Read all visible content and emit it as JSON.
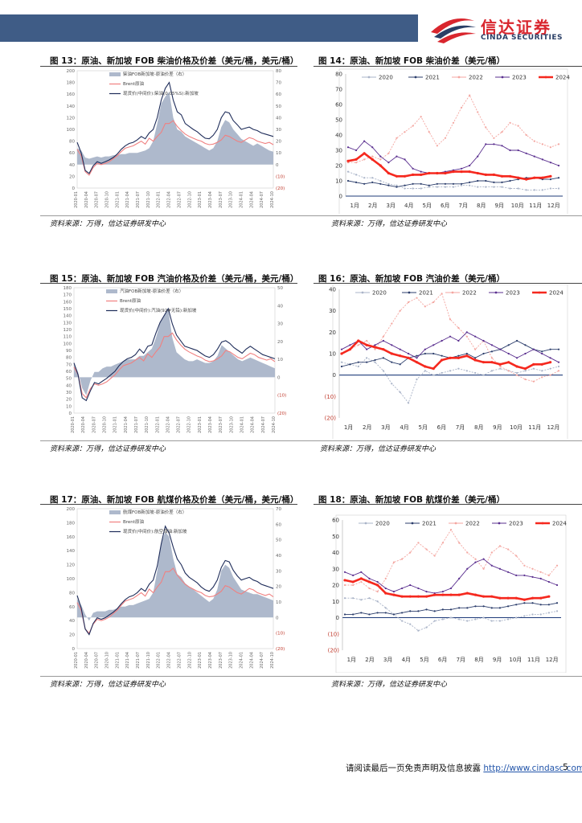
{
  "header": {
    "brand_cn": "信达证券",
    "brand_en": "CINDA SECURITIES",
    "colors": {
      "bar": "#3f5c86",
      "brand_red": "#d9262e",
      "brand_navy": "#2a3f66"
    }
  },
  "source_note": "资料来源：万得，信达证券研发中心",
  "footer": {
    "disclaimer": "请阅读最后一页免责声明及信息披露",
    "url": "http://www.cindasc.com",
    "page": "5"
  },
  "chart_data": [
    {
      "id": "fig13",
      "type": "area+line",
      "title": "图 13：原油、新加坡 FOB 柴油价格及价差（美元/桶，美元/桶）",
      "series": [
        {
          "name": "柴油FOB新加坡-原油价差（右）",
          "kind": "area",
          "color": "#aeb9cc"
        },
        {
          "name": "Brent原油",
          "kind": "line",
          "color": "#f08080"
        },
        {
          "name": "现货价(中间价):柴油(0.05%S):新加坡",
          "kind": "line",
          "color": "#1f2d5a"
        }
      ],
      "left_axis": {
        "ticks": [
          "0",
          "20",
          "40",
          "60",
          "80",
          "100",
          "120",
          "140",
          "160",
          "180",
          "200"
        ],
        "ylim": [
          0,
          200
        ]
      },
      "right_axis": {
        "ticks": [
          "(20)",
          "(10)",
          "0",
          "10",
          "20",
          "30",
          "40",
          "50",
          "60",
          "70",
          "80"
        ],
        "ylim": [
          -20,
          80
        ]
      },
      "x_ticks": [
        "2020-01",
        "2020-04",
        "2020-07",
        "2020-10",
        "2021-01",
        "2021-04",
        "2021-07",
        "2021-10",
        "2022-01",
        "2022-04",
        "2022-07",
        "2022-10",
        "2023-01",
        "2023-04",
        "2023-07",
        "2023-10",
        "2024-01",
        "2024-04",
        "2024-07",
        "2024-10"
      ],
      "brent": [
        66,
        55,
        28,
        22,
        35,
        42,
        40,
        42,
        45,
        50,
        55,
        62,
        68,
        70,
        72,
        76,
        80,
        75,
        85,
        80,
        88,
        95,
        110,
        110,
        115,
        105,
        98,
        92,
        88,
        85,
        82,
        80,
        76,
        74,
        75,
        78,
        82,
        90,
        88,
        84,
        80,
        78,
        82,
        86,
        84,
        80,
        78,
        76,
        78,
        74
      ],
      "diesel": [
        78,
        60,
        30,
        25,
        38,
        45,
        42,
        45,
        48,
        52,
        58,
        66,
        72,
        76,
        78,
        82,
        88,
        84,
        94,
        100,
        120,
        150,
        170,
        180,
        150,
        130,
        125,
        110,
        105,
        100,
        96,
        90,
        85,
        84,
        90,
        100,
        120,
        130,
        128,
        115,
        108,
        100,
        102,
        104,
        100,
        98,
        94,
        92,
        90,
        88
      ],
      "spread": [
        14,
        12,
        6,
        5,
        6,
        7,
        6,
        7,
        7,
        8,
        8,
        9,
        9,
        10,
        10,
        10,
        11,
        12,
        14,
        20,
        35,
        52,
        58,
        62,
        40,
        30,
        28,
        24,
        22,
        20,
        18,
        16,
        14,
        12,
        14,
        20,
        32,
        38,
        36,
        30,
        26,
        22,
        20,
        18,
        16,
        18,
        16,
        14,
        12,
        11
      ]
    },
    {
      "id": "fig14",
      "type": "line",
      "title": "图 14：原油、新加坡 FOB 柴油价差（美元/桶）",
      "legend": [
        "2020",
        "2021",
        "2022",
        "2023",
        "2024"
      ],
      "colors": {
        "2020": "#aab4c8",
        "2021": "#2b3d6b",
        "2022": "#f4a6a0",
        "2023": "#5a2f8f",
        "2024": "#f5281e"
      },
      "y_ticks": [
        "0",
        "10",
        "20",
        "30",
        "40",
        "50",
        "60",
        "70",
        "80"
      ],
      "ylim": [
        0,
        80
      ],
      "x_ticks": [
        "1月",
        "2月",
        "3月",
        "4月",
        "5月",
        "6月",
        "7月",
        "8月",
        "9月",
        "10月",
        "11月",
        "12月"
      ],
      "series": {
        "2020": [
          16,
          14,
          12,
          12,
          10,
          8,
          7,
          5,
          5,
          5,
          6,
          6,
          6,
          6,
          7,
          7,
          6,
          6,
          6,
          6,
          5,
          5,
          4,
          4,
          4,
          5,
          5
        ],
        "2021": [
          10,
          9,
          8,
          9,
          8,
          7,
          6,
          7,
          8,
          8,
          7,
          8,
          8,
          8,
          8,
          9,
          10,
          10,
          9,
          9,
          10,
          11,
          12,
          12,
          11,
          11,
          12
        ],
        "2022": [
          22,
          22,
          24,
          26,
          24,
          28,
          38,
          42,
          46,
          52,
          42,
          33,
          38,
          48,
          58,
          66,
          55,
          45,
          38,
          42,
          48,
          46,
          40,
          36,
          34,
          32,
          34
        ],
        "2023": [
          32,
          30,
          36,
          32,
          26,
          22,
          26,
          24,
          18,
          16,
          15,
          15,
          16,
          17,
          18,
          20,
          26,
          34,
          34,
          33,
          30,
          30,
          28,
          26,
          24,
          22,
          20
        ],
        "2024": [
          23,
          24,
          28,
          24,
          20,
          15,
          13,
          13,
          14,
          14,
          15,
          15,
          15,
          16,
          16,
          16,
          15,
          14,
          14,
          13,
          13,
          12,
          11,
          12,
          12,
          13,
          null
        ]
      }
    },
    {
      "id": "fig15",
      "type": "area+line",
      "title": "图 15：原油、新加坡 FOB 汽油价格及价差（美元/桶，美元/桶）",
      "series": [
        {
          "name": "汽油FOB新加坡-原油价差（右）",
          "kind": "area",
          "color": "#aeb9cc"
        },
        {
          "name": "Brent原油",
          "kind": "line",
          "color": "#f08080"
        },
        {
          "name": "现货价(中间价):汽油(92#无铅):新加坡",
          "kind": "line",
          "color": "#1f2d5a"
        }
      ],
      "left_axis": {
        "ticks": [
          "0",
          "10",
          "20",
          "30",
          "40",
          "50",
          "60",
          "70",
          "80",
          "90",
          "100",
          "110",
          "120",
          "130",
          "140",
          "150",
          "160",
          "170",
          "180"
        ],
        "ylim": [
          0,
          180
        ]
      },
      "right_axis": {
        "ticks": [
          "(20)",
          "(10)",
          "0",
          "10",
          "20",
          "30",
          "40",
          "50"
        ],
        "ylim": [
          -20,
          50
        ]
      },
      "x_ticks": [
        "2020-01",
        "2020-04",
        "2020-07",
        "2020-10",
        "2021-01",
        "2021-04",
        "2021-07",
        "2021-10",
        "2022-01",
        "2022-04",
        "2022-07",
        "2022-10",
        "2023-01",
        "2023-04",
        "2023-07",
        "2023-10",
        "2024-01",
        "2024-04",
        "2024-07",
        "2024-10"
      ],
      "brent": [
        66,
        55,
        28,
        22,
        35,
        42,
        40,
        42,
        45,
        50,
        55,
        62,
        68,
        70,
        72,
        76,
        80,
        75,
        85,
        80,
        88,
        95,
        110,
        110,
        115,
        105,
        98,
        92,
        88,
        85,
        82,
        80,
        76,
        74,
        75,
        78,
        82,
        90,
        88,
        84,
        80,
        78,
        82,
        86,
        84,
        80,
        78,
        76,
        78,
        74
      ],
      "gasoline": [
        72,
        55,
        22,
        18,
        32,
        44,
        42,
        46,
        50,
        55,
        60,
        68,
        74,
        78,
        80,
        84,
        92,
        86,
        96,
        98,
        115,
        130,
        140,
        150,
        128,
        112,
        104,
        96,
        94,
        92,
        90,
        86,
        82,
        80,
        84,
        92,
        102,
        104,
        100,
        94,
        90,
        86,
        92,
        96,
        92,
        88,
        84,
        82,
        80,
        78
      ],
      "spread": [
        8,
        3,
        -6,
        -10,
        -2,
        3,
        3,
        5,
        6,
        6,
        7,
        8,
        9,
        10,
        10,
        10,
        12,
        12,
        14,
        16,
        22,
        30,
        34,
        38,
        22,
        14,
        12,
        10,
        9,
        9,
        10,
        9,
        8,
        8,
        9,
        12,
        18,
        16,
        14,
        12,
        10,
        9,
        10,
        11,
        10,
        9,
        8,
        7,
        6,
        5
      ]
    },
    {
      "id": "fig16",
      "type": "line",
      "title": "图 16：原油、新加坡 FOB 汽油价差（美元/桶）",
      "legend": [
        "2020",
        "2021",
        "2022",
        "2023",
        "2024"
      ],
      "colors": {
        "2020": "#aab4c8",
        "2021": "#2b3d6b",
        "2022": "#f4a6a0",
        "2023": "#5a2f8f",
        "2024": "#f5281e"
      },
      "y_ticks": [
        "(20)",
        "(10)",
        "0",
        "10",
        "20",
        "30",
        "40"
      ],
      "ylim": [
        -20,
        40
      ],
      "x_ticks": [
        "1月",
        "2月",
        "3月",
        "4月",
        "5月",
        "6月",
        "7月",
        "8月",
        "9月",
        "10月",
        "11月",
        "12月"
      ],
      "series": {
        "2020": [
          6,
          5,
          4,
          8,
          6,
          2,
          -4,
          -8,
          -13,
          -2,
          2,
          0,
          1,
          2,
          3,
          2,
          1,
          0,
          2,
          3,
          2,
          1,
          2,
          3,
          2,
          3,
          4
        ],
        "2021": [
          4,
          5,
          6,
          6,
          7,
          8,
          6,
          5,
          8,
          9,
          10,
          10,
          9,
          8,
          9,
          10,
          8,
          10,
          11,
          12,
          14,
          16,
          14,
          12,
          11,
          12,
          12
        ],
        "2022": [
          10,
          12,
          14,
          16,
          12,
          18,
          24,
          30,
          34,
          36,
          32,
          34,
          38,
          26,
          22,
          18,
          12,
          16,
          8,
          4,
          2,
          0,
          -2,
          -3,
          -1,
          0,
          2
        ],
        "2023": [
          12,
          14,
          16,
          12,
          14,
          16,
          14,
          12,
          10,
          8,
          12,
          14,
          16,
          18,
          16,
          20,
          18,
          16,
          14,
          12,
          10,
          8,
          10,
          12,
          10,
          8,
          6
        ],
        "2024": [
          10,
          12,
          16,
          14,
          13,
          12,
          10,
          9,
          8,
          6,
          4,
          3,
          7,
          8,
          8,
          9,
          7,
          6,
          6,
          5,
          6,
          4,
          3,
          5,
          5,
          6,
          null
        ]
      }
    },
    {
      "id": "fig17",
      "type": "area+line",
      "title": "图 17：原油、新加坡 FOB 航煤价格及价差（美元/桶，美元/桶）",
      "series": [
        {
          "name": "航煤FOB新加坡-原油价差（右）",
          "kind": "area",
          "color": "#aeb9cc"
        },
        {
          "name": "Brent原油",
          "kind": "line",
          "color": "#f08080"
        },
        {
          "name": "现货价(中间价):航空煤油:新加坡",
          "kind": "line",
          "color": "#1f2d5a"
        }
      ],
      "left_axis": {
        "ticks": [
          "0",
          "20",
          "40",
          "60",
          "80",
          "100",
          "120",
          "140",
          "160",
          "180",
          "200"
        ],
        "ylim": [
          0,
          200
        ]
      },
      "right_axis": {
        "ticks": [
          "(20)",
          "(10)",
          "0",
          "10",
          "20",
          "30",
          "40",
          "50",
          "60",
          "70"
        ],
        "ylim": [
          -20,
          70
        ]
      },
      "x_ticks": [
        "2020-01",
        "2020-04",
        "2020-07",
        "2020-10",
        "2021-01",
        "2021-04",
        "2021-07",
        "2021-10",
        "2022-01",
        "2022-04",
        "2022-07",
        "2022-10",
        "2023-01",
        "2023-04",
        "2023-07",
        "2023-10",
        "2024-01",
        "2024-04",
        "2024-07",
        "2024-10"
      ],
      "brent": [
        66,
        55,
        28,
        22,
        35,
        42,
        40,
        42,
        45,
        50,
        55,
        62,
        68,
        70,
        72,
        76,
        80,
        75,
        85,
        80,
        88,
        95,
        110,
        110,
        115,
        105,
        98,
        92,
        88,
        85,
        82,
        80,
        76,
        74,
        75,
        78,
        82,
        90,
        88,
        84,
        80,
        78,
        82,
        86,
        84,
        80,
        78,
        76,
        78,
        74
      ],
      "jet": [
        76,
        58,
        28,
        20,
        36,
        44,
        42,
        44,
        48,
        52,
        57,
        64,
        70,
        74,
        76,
        80,
        86,
        82,
        92,
        98,
        118,
        150,
        175,
        165,
        145,
        128,
        120,
        108,
        102,
        98,
        94,
        88,
        84,
        82,
        88,
        98,
        116,
        126,
        124,
        112,
        104,
        98,
        100,
        102,
        98,
        96,
        92,
        90,
        88,
        86
      ],
      "spread": [
        12,
        8,
        2,
        -2,
        3,
        4,
        4,
        4,
        5,
        5,
        6,
        7,
        7,
        8,
        8,
        9,
        10,
        11,
        12,
        16,
        30,
        48,
        55,
        52,
        38,
        28,
        26,
        22,
        20,
        18,
        16,
        14,
        12,
        10,
        12,
        18,
        30,
        34,
        32,
        26,
        22,
        18,
        17,
        16,
        15,
        15,
        14,
        13,
        12,
        11
      ]
    },
    {
      "id": "fig18",
      "type": "line",
      "title": "图 18：原油、新加坡 FOB 航煤价差（美元/桶）",
      "legend": [
        "2020",
        "2021",
        "2022",
        "2023",
        "2024"
      ],
      "colors": {
        "2020": "#aab4c8",
        "2021": "#2b3d6b",
        "2022": "#f4a6a0",
        "2023": "#5a2f8f",
        "2024": "#f5281e"
      },
      "y_ticks": [
        "(20)",
        "(10)",
        "0",
        "10",
        "20",
        "30",
        "40",
        "50",
        "60"
      ],
      "ylim": [
        -20,
        60
      ],
      "x_ticks": [
        "1月",
        "2月",
        "3月",
        "4月",
        "5月",
        "6月",
        "7月",
        "8月",
        "9月",
        "10月",
        "11月",
        "12月"
      ],
      "series": {
        "2020": [
          12,
          12,
          11,
          12,
          10,
          6,
          2,
          -2,
          -4,
          -8,
          -6,
          -2,
          -1,
          0,
          -1,
          -2,
          -1,
          0,
          -2,
          -2,
          -1,
          0,
          1,
          2,
          2,
          3,
          4
        ],
        "2021": [
          2,
          2,
          3,
          2,
          3,
          3,
          2,
          3,
          4,
          4,
          5,
          4,
          5,
          5,
          6,
          6,
          7,
          7,
          6,
          6,
          7,
          8,
          9,
          9,
          8,
          8,
          9
        ],
        "2022": [
          20,
          20,
          22,
          18,
          16,
          24,
          34,
          36,
          40,
          46,
          42,
          38,
          46,
          54,
          46,
          40,
          36,
          30,
          40,
          44,
          42,
          38,
          32,
          30,
          28,
          26,
          32
        ],
        "2023": [
          28,
          26,
          28,
          24,
          22,
          18,
          16,
          18,
          20,
          18,
          16,
          15,
          16,
          18,
          24,
          30,
          34,
          36,
          32,
          30,
          28,
          26,
          26,
          25,
          24,
          22,
          20
        ],
        "2024": [
          23,
          22,
          24,
          22,
          20,
          15,
          14,
          13,
          13,
          13,
          13,
          14,
          14,
          14,
          14,
          15,
          14,
          13,
          13,
          12,
          12,
          12,
          11,
          12,
          12,
          13,
          null
        ]
      }
    }
  ]
}
